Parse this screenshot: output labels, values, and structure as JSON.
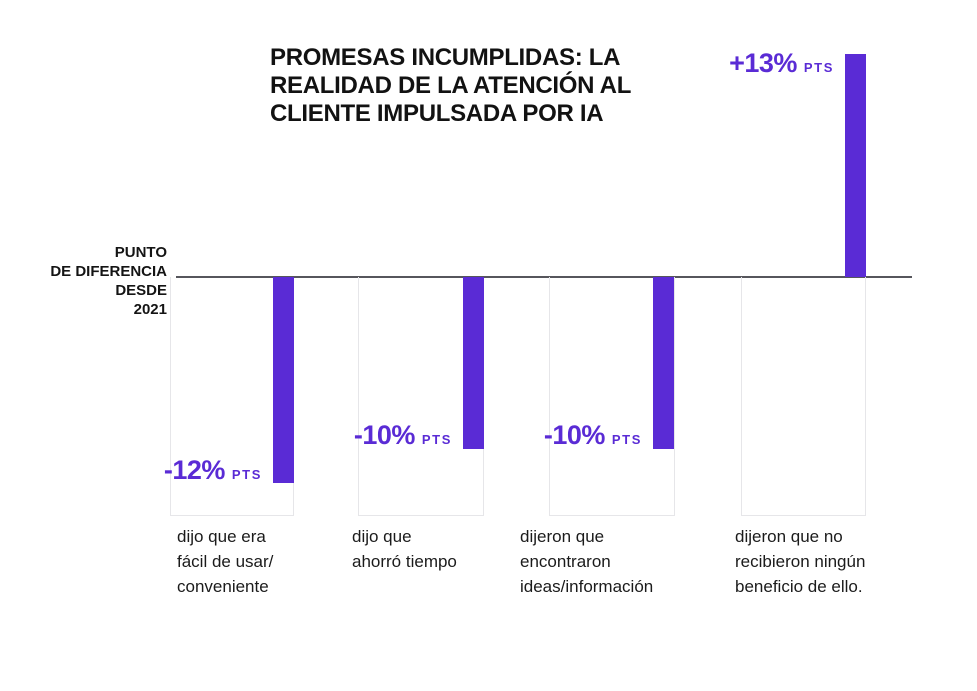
{
  "title": "PROMESAS INCUMPLIDAS: LA\nREALIDAD DE LA ATENCIÓN AL\nCLIENTE IMPULSADA POR IA",
  "axis_label": "PUNTO\nDE DIFERENCIA\nDESDE\n2021",
  "colors": {
    "accent": "#5a2bd5",
    "baseline": "#56565c",
    "column_outline": "#e6e6e9",
    "title_text": "#121212",
    "category_text": "#1b1b1b"
  },
  "chart_data": {
    "type": "bar",
    "title": "PROMESAS INCUMPLIDAS: LA REALIDAD DE LA ATENCIÓN AL CLIENTE IMPULSADA POR IA",
    "ylabel": "PUNTO DE DIFERENCIA DESDE 2021",
    "unit": "PTS",
    "categories": [
      "dijo que era fácil de usar/ conveniente",
      "dijo que ahorró tiempo",
      "dijeron que encontraron ideas/información",
      "dijeron que no recibieron ningún beneficio de ello."
    ],
    "values": [
      -12,
      -10,
      -10,
      13
    ],
    "value_labels": [
      "-12%",
      "-10%",
      "-10%",
      "+13%"
    ],
    "ylim": [
      -14,
      14
    ],
    "grid": false,
    "legend": false
  },
  "bars": [
    {
      "value_label": "-12%",
      "unit": "PTS",
      "category": "dijo que era\nfácil de usar/\nconveniente"
    },
    {
      "value_label": "-10%",
      "unit": "PTS",
      "category": "dijo que\n ahorró tiempo"
    },
    {
      "value_label": "-10%",
      "unit": "PTS",
      "category": "dijeron que\nencontraron\nideas/información"
    },
    {
      "value_label": "+13%",
      "unit": "PTS",
      "category": "dijeron que no\nrecibieron ningún\nbeneficio de ello."
    }
  ]
}
